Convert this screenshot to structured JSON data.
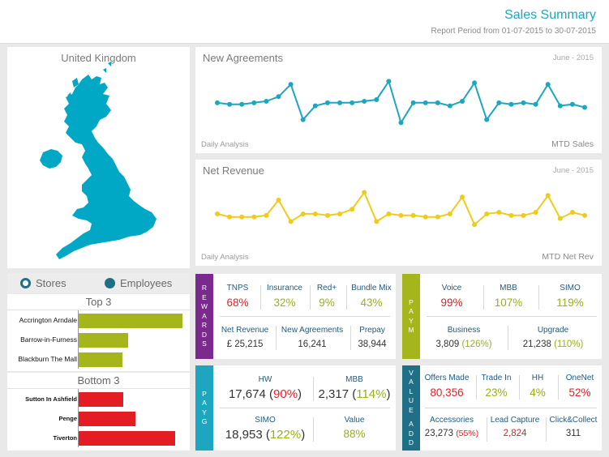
{
  "header": {
    "title": "Sales Summary",
    "period": "Report Period from 01-07-2015 to 30-07-2015"
  },
  "map": {
    "title": "United Kingdom",
    "fill_color": "#00a8c6"
  },
  "charts": {
    "agreements": {
      "title": "New Agreements",
      "date": "June - 2015",
      "bottom_left": "Daily Analysis",
      "bottom_right": "MTD Sales"
    },
    "revenue": {
      "title": "Net Revenue",
      "date": "June - 2015",
      "bottom_left": "Daily Analysis",
      "bottom_right": "MTD Net Rev"
    }
  },
  "chart_data": [
    {
      "type": "line",
      "name": "new-agreements",
      "color": "#1ea6c0",
      "values": [
        46,
        45,
        45,
        46,
        47,
        50,
        58,
        35,
        44,
        46,
        46,
        46,
        47,
        48,
        60,
        33,
        46,
        46,
        46,
        44,
        47,
        59,
        35,
        46,
        45,
        46,
        45,
        58,
        44,
        45,
        43
      ],
      "ylim": [
        20,
        75
      ],
      "grid": false
    },
    {
      "type": "line",
      "name": "net-revenue",
      "color": "#f0cc1a",
      "values": [
        47,
        45,
        45,
        45,
        46,
        56,
        42,
        47,
        47,
        46,
        47,
        50,
        61,
        42,
        47,
        46,
        46,
        45,
        45,
        47,
        58,
        40,
        47,
        48,
        46,
        46,
        48,
        59,
        44,
        48,
        46
      ],
      "ylim": [
        20,
        75
      ],
      "grid": false
    }
  ],
  "toggle": {
    "stores": "Stores",
    "employees": "Employees"
  },
  "top3": {
    "title": "Top 3",
    "color": "#a5b61d",
    "items": [
      {
        "label": "Accrington Arndale",
        "value": 100
      },
      {
        "label": "Barrow-in-Furness",
        "value": 48
      },
      {
        "label": "Blackburn The Mall",
        "value": 42
      }
    ]
  },
  "bottom3": {
    "title": "Bottom 3",
    "color": "#e41c24",
    "items": [
      {
        "label": "Sutton In Ashfield",
        "value": 43
      },
      {
        "label": "Penge",
        "value": 55
      },
      {
        "label": "Tiverton",
        "value": 93
      }
    ]
  },
  "rewards": {
    "tab": [
      "R",
      "E",
      "W",
      "A",
      "R",
      "D",
      "S"
    ],
    "tab_color": "#7a2a8c",
    "row1": [
      {
        "label": "TNPS",
        "value": "68%",
        "color": "red"
      },
      {
        "label": "Insurance",
        "value": "32%",
        "color": "green"
      },
      {
        "label": "Red+",
        "value": "9%",
        "color": "green"
      },
      {
        "label": "Bundle Mix",
        "value": "43%",
        "color": "green"
      }
    ],
    "row2": [
      {
        "label": "Net Revenue",
        "value": "£ 25,215"
      },
      {
        "label": "New Agreements",
        "value": "16,241"
      },
      {
        "label": "Prepay",
        "value": "38,944"
      }
    ]
  },
  "paym": {
    "tab": [
      "P",
      "A",
      "Y",
      "M"
    ],
    "tab_color": "#a5b61d",
    "row1": [
      {
        "label": "Voice",
        "value": "99%",
        "color": "red"
      },
      {
        "label": "MBB",
        "value": "107%",
        "color": "green"
      },
      {
        "label": "SIMO",
        "value": "119%",
        "color": "green"
      }
    ],
    "row2": [
      {
        "label": "Business",
        "value": "3,809",
        "pct": "(126%)"
      },
      {
        "label": "Upgrade",
        "value": "21,238",
        "pct": "(110%)"
      }
    ]
  },
  "payg": {
    "tab": [
      "P",
      "A",
      "Y",
      "G"
    ],
    "tab_color": "#1ea6c0",
    "row1": [
      {
        "label": "HW",
        "value": "17,674",
        "pct": "90%",
        "pct_color": "red"
      },
      {
        "label": "MBB",
        "value": "2,317",
        "pct": "114%",
        "pct_color": "green"
      }
    ],
    "row2": [
      {
        "label": "SIMO",
        "value": "18,953",
        "pct": "122%",
        "pct_color": "green"
      },
      {
        "label": "Value",
        "value": "88%"
      }
    ]
  },
  "valueadd": {
    "tab": [
      "V",
      "A",
      "L",
      "U",
      "E",
      "",
      "A",
      "D",
      "D"
    ],
    "tab_color": "#1f6f87",
    "row1": [
      {
        "label": "Offers Made",
        "value": "80,356",
        "color": "red"
      },
      {
        "label": "Trade In",
        "value": "23%",
        "color": "green"
      },
      {
        "label": "HH",
        "value": "4%",
        "color": "green"
      },
      {
        "label": "OneNet",
        "value": "52%",
        "color": "red"
      }
    ],
    "row2": [
      {
        "label": "Accessories",
        "value": "23,273",
        "pct": "(55%)"
      },
      {
        "label": "Lead Capture",
        "value": "2,824"
      },
      {
        "label": "Click&Collect",
        "value": "311"
      }
    ]
  }
}
